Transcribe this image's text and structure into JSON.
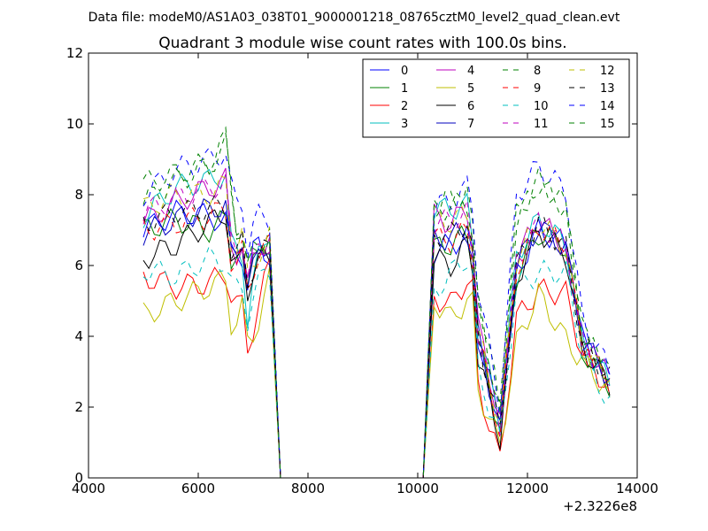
{
  "suptitle": "Data file: modeM0/AS1A03_038T01_9000001218_08765cztM0_level2_quad_clean.evt",
  "chart_data": {
    "type": "line",
    "title": "Quadrant 3 module wise count rates with 100.0s bins.",
    "xlabel": "",
    "ylabel": "",
    "xlim": [
      4000,
      14000
    ],
    "ylim": [
      0,
      12
    ],
    "x_offset_label": "+2.3226e8",
    "x_ticks": [
      4000,
      6000,
      8000,
      10000,
      12000,
      14000
    ],
    "x_tick_labels": [
      "4000",
      "6000",
      "8000",
      "10000",
      "12000",
      "14000"
    ],
    "y_ticks": [
      0,
      2,
      4,
      6,
      8,
      10,
      12
    ],
    "y_tick_labels": [
      "0",
      "2",
      "4",
      "6",
      "8",
      "10",
      "12"
    ],
    "grid": false,
    "legend": {
      "location": "top-right",
      "columns": 4
    },
    "series": [
      {
        "name": "0",
        "color": "#0000ff",
        "dash": "solid",
        "base": [
          7.0,
          7.5,
          7.4,
          7.2,
          6.6,
          6.2,
          6.8,
          5.2,
          6.9,
          6.2
        ],
        "gap": [
          6.4,
          6.6,
          6.8,
          6.2,
          4.0,
          1.5,
          5.8,
          7.0,
          6.6,
          3.9,
          2.8
        ]
      },
      {
        "name": "1",
        "color": "#008000",
        "dash": "solid",
        "base": [
          7.0,
          7.3,
          7.0,
          7.3,
          6.4,
          6.0,
          6.9,
          5.1,
          7.0,
          6.0
        ],
        "gap": [
          6.5,
          6.6,
          6.9,
          6.1,
          3.8,
          1.4,
          5.7,
          6.9,
          6.5,
          3.6,
          2.6
        ]
      },
      {
        "name": "2",
        "color": "#ff0000",
        "dash": "solid",
        "base": [
          5.7,
          5.4,
          5.5,
          5.8,
          6.0,
          4.2,
          5.5,
          3.7,
          4.5,
          6.1
        ],
        "gap": [
          5.1,
          4.9,
          5.6,
          5.3,
          2.6,
          0.5,
          4.5,
          5.3,
          5.2,
          3.5,
          2.5
        ]
      },
      {
        "name": "3",
        "color": "#00bfbf",
        "dash": "solid",
        "base": [
          7.4,
          8.2,
          8.4,
          8.6,
          7.6,
          5.6,
          7.2,
          4.5,
          6.0,
          7.0
        ],
        "gap": [
          7.6,
          7.6,
          7.7,
          6.7,
          4.2,
          1.6,
          6.3,
          7.3,
          6.6,
          3.8,
          2.7
        ]
      },
      {
        "name": "4",
        "color": "#bf00bf",
        "dash": "solid",
        "base": [
          7.2,
          7.8,
          8.2,
          8.4,
          7.5,
          5.4,
          7.3,
          5.4,
          6.4,
          6.8
        ],
        "gap": [
          7.4,
          7.2,
          7.6,
          6.6,
          4.3,
          1.6,
          6.2,
          7.3,
          6.5,
          3.8,
          2.8
        ]
      },
      {
        "name": "5",
        "color": "#bfbf00",
        "dash": "solid",
        "base": [
          4.6,
          5.0,
          5.4,
          5.6,
          5.3,
          3.5,
          5.3,
          3.8,
          4.2,
          5.6
        ],
        "gap": [
          5.0,
          4.5,
          5.0,
          4.9,
          2.5,
          0.9,
          3.8,
          5.2,
          3.9,
          3.3,
          2.4
        ]
      },
      {
        "name": "6",
        "color": "#000000",
        "dash": "solid",
        "base": [
          6.2,
          6.6,
          7.2,
          7.5,
          7.3,
          4.9,
          6.9,
          5.3,
          6.1,
          6.2
        ],
        "gap": [
          6.2,
          6.0,
          6.6,
          6.0,
          3.4,
          1.1,
          5.6,
          7.0,
          6.3,
          3.7,
          2.6
        ]
      },
      {
        "name": "7",
        "color": "#0000bf",
        "dash": "solid",
        "base": [
          6.9,
          7.3,
          7.6,
          7.7,
          7.2,
          5.2,
          7.5,
          5.5,
          6.1,
          6.7
        ],
        "gap": [
          6.7,
          6.8,
          7.0,
          6.2,
          4.0,
          1.3,
          6.0,
          7.1,
          6.5,
          3.9,
          2.8
        ]
      },
      {
        "name": "8",
        "color": "#008000",
        "dash": "dashed",
        "base": [
          8.3,
          8.6,
          8.9,
          9.6,
          9.6,
          6.8,
          7.6,
          5.8,
          6.6,
          6.9
        ],
        "gap": [
          7.6,
          7.9,
          8.0,
          7.0,
          5.2,
          2.0,
          7.4,
          8.4,
          7.7,
          4.2,
          2.9
        ]
      },
      {
        "name": "9",
        "color": "#ff0000",
        "dash": "dashed",
        "base": [
          7.0,
          7.2,
          7.4,
          7.6,
          7.3,
          5.0,
          6.9,
          5.3,
          6.2,
          6.6
        ],
        "gap": [
          6.8,
          6.7,
          7.0,
          6.3,
          3.9,
          1.3,
          5.9,
          7.1,
          6.6,
          3.7,
          2.7
        ]
      },
      {
        "name": "10",
        "color": "#00bfbf",
        "dash": "dashed",
        "base": [
          5.9,
          5.7,
          6.2,
          6.1,
          6.2,
          4.8,
          5.8,
          4.5,
          5.4,
          5.9
        ],
        "gap": [
          5.2,
          5.8,
          6.2,
          5.7,
          3.0,
          1.1,
          5.4,
          5.8,
          5.8,
          3.5,
          2.1
        ]
      },
      {
        "name": "11",
        "color": "#bf00bf",
        "dash": "dashed",
        "base": [
          7.5,
          7.9,
          8.2,
          8.3,
          7.7,
          5.6,
          7.4,
          5.6,
          6.5,
          6.6
        ],
        "gap": [
          7.2,
          7.3,
          7.5,
          6.5,
          4.2,
          1.5,
          6.1,
          7.2,
          6.6,
          3.8,
          2.8
        ]
      },
      {
        "name": "12",
        "color": "#bfbf00",
        "dash": "dashed",
        "base": [
          7.6,
          8.0,
          8.0,
          8.3,
          7.7,
          5.6,
          7.6,
          5.6,
          6.2,
          6.8
        ],
        "gap": [
          7.4,
          7.2,
          7.5,
          6.6,
          4.1,
          1.5,
          6.2,
          7.2,
          6.5,
          3.7,
          2.7
        ]
      },
      {
        "name": "13",
        "color": "#000000",
        "dash": "dashed",
        "base": [
          7.2,
          7.5,
          7.6,
          7.7,
          7.5,
          5.2,
          7.3,
          5.5,
          6.2,
          6.5
        ],
        "gap": [
          6.9,
          6.9,
          7.2,
          6.3,
          4.0,
          1.3,
          6.0,
          7.2,
          6.5,
          3.8,
          2.8
        ]
      },
      {
        "name": "14",
        "color": "#0000ff",
        "dash": "dashed",
        "base": [
          8.0,
          8.7,
          9.0,
          9.2,
          9.4,
          7.0,
          8.4,
          6.5,
          7.4,
          7.3
        ],
        "gap": [
          7.7,
          7.8,
          8.2,
          7.6,
          5.4,
          2.0,
          8.0,
          8.8,
          8.1,
          4.5,
          3.0
        ]
      },
      {
        "name": "15",
        "color": "#008000",
        "dash": "dashed",
        "base": [
          7.8,
          8.4,
          8.8,
          9.4,
          9.9,
          6.5,
          7.6,
          5.9,
          6.6,
          6.8
        ],
        "gap": [
          7.5,
          7.7,
          7.8,
          6.9,
          4.9,
          1.9,
          7.3,
          8.3,
          7.6,
          4.1,
          2.9
        ]
      }
    ]
  }
}
